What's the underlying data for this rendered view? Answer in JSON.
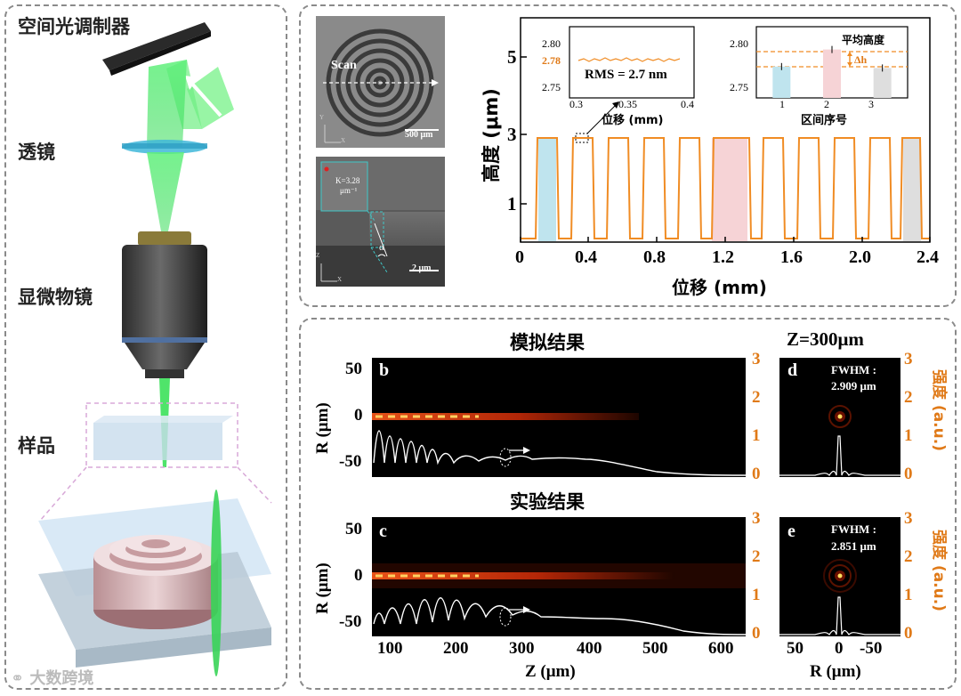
{
  "setup": {
    "slm_label": "空间光调制器",
    "lens_label": "透镜",
    "objective_label": "显微物镜",
    "sample_label": "样品"
  },
  "sem": {
    "top_scan_label": "Scan",
    "top_scalebar": "500 μm",
    "bottom_k_label_1": "K=3.28",
    "bottom_k_label_2": "μm⁻¹",
    "bottom_alpha": "α",
    "bottom_scalebar": "2 μm",
    "axis_y": "Y",
    "axis_x": "X",
    "axis_z": "Z"
  },
  "profile": {
    "ylabel": "高度 (μm)",
    "xlabel": "位移 (mm)",
    "yticks": [
      "1",
      "3",
      "5"
    ],
    "xticks": [
      "0",
      "0.4",
      "0.8",
      "1.2",
      "1.6",
      "2.0",
      "2.4"
    ],
    "inset1": {
      "yticks": [
        "2.80",
        "2.78",
        "2.75"
      ],
      "xticks": [
        "0.3",
        "0.35",
        "0.4"
      ],
      "xlabel": "位移 (mm)",
      "rms_text": "RMS = 2.7 nm"
    },
    "inset2": {
      "yticks": [
        "2.80",
        "2.75"
      ],
      "xticks": [
        "1",
        "2",
        "3"
      ],
      "xlabel": "区间序号",
      "legend": "平均高度",
      "dh": "Δh"
    }
  },
  "chart_data": {
    "type": "bar",
    "title": "平均高度",
    "xlabel": "区间序号",
    "categories": [
      "1",
      "2",
      "3"
    ],
    "values": [
      2.772,
      2.784,
      2.771
    ],
    "ylim": [
      2.75,
      2.8
    ]
  },
  "simulation": {
    "title_sim": "模拟结果",
    "title_exp": "实验结果",
    "title_z": "Z=300μm",
    "panel_b": "b",
    "panel_c": "c",
    "panel_d": "d",
    "panel_e": "e",
    "fwhm_label": "FWHM :",
    "fwhm_d": "2.909 μm",
    "fwhm_e": "2.851 μm",
    "r_label": "R (μm)",
    "z_label": "Z (μm)",
    "r_bottom_label": "R (μm)",
    "intensity_label": "强度 (a.u.)",
    "r_ticks": [
      "50",
      "0",
      "-50"
    ],
    "z_ticks": [
      "100",
      "200",
      "300",
      "400",
      "500",
      "600"
    ],
    "r_bottom_ticks": [
      "50",
      "0",
      "-50"
    ],
    "int_ticks": [
      "3",
      "2",
      "1",
      "0"
    ]
  },
  "watermark": "大数跨境"
}
